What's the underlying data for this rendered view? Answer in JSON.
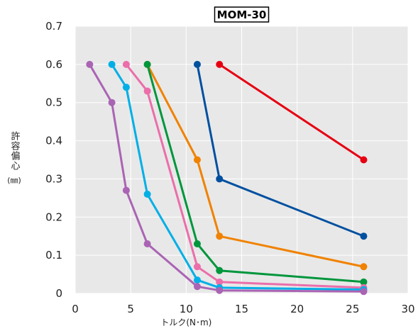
{
  "chart_data": {
    "type": "line",
    "title": "MOM-30",
    "xlabel": "トルク(N･m)",
    "ylabel": "許容偏心",
    "ylabel_unit": "(㎜)",
    "xlim": [
      0,
      30
    ],
    "ylim": [
      0,
      0.7
    ],
    "x_ticks": [
      0,
      5,
      10,
      15,
      20,
      25,
      30
    ],
    "y_ticks": [
      0,
      0.1,
      0.2,
      0.3,
      0.4,
      0.5,
      0.6,
      0.7
    ],
    "grid": true,
    "background": "#e8e8e8",
    "series": [
      {
        "color": "#e60012",
        "points": [
          [
            13,
            0.6
          ],
          [
            26,
            0.35
          ]
        ]
      },
      {
        "color": "#0050a0",
        "points": [
          [
            11,
            0.6
          ],
          [
            13,
            0.3
          ],
          [
            26,
            0.15
          ]
        ]
      },
      {
        "color": "#f08200",
        "points": [
          [
            6.5,
            0.6
          ],
          [
            11,
            0.35
          ],
          [
            13,
            0.15
          ],
          [
            26,
            0.07
          ]
        ]
      },
      {
        "color": "#00963c",
        "points": [
          [
            6.5,
            0.6
          ],
          [
            11,
            0.13
          ],
          [
            13,
            0.06
          ],
          [
            26,
            0.03
          ]
        ]
      },
      {
        "color": "#eb6eaa",
        "points": [
          [
            4.6,
            0.6
          ],
          [
            6.5,
            0.53
          ],
          [
            11,
            0.07
          ],
          [
            13,
            0.03
          ],
          [
            26,
            0.015
          ]
        ]
      },
      {
        "color": "#00afe6",
        "points": [
          [
            3.3,
            0.6
          ],
          [
            4.6,
            0.54
          ],
          [
            6.5,
            0.26
          ],
          [
            11,
            0.035
          ],
          [
            13,
            0.015
          ],
          [
            26,
            0.01
          ]
        ]
      },
      {
        "color": "#aa64b4",
        "points": [
          [
            1.3,
            0.6
          ],
          [
            3.3,
            0.5
          ],
          [
            4.6,
            0.27
          ],
          [
            6.5,
            0.13
          ],
          [
            11,
            0.018
          ],
          [
            13,
            0.008
          ],
          [
            26,
            0.005
          ]
        ]
      }
    ]
  }
}
